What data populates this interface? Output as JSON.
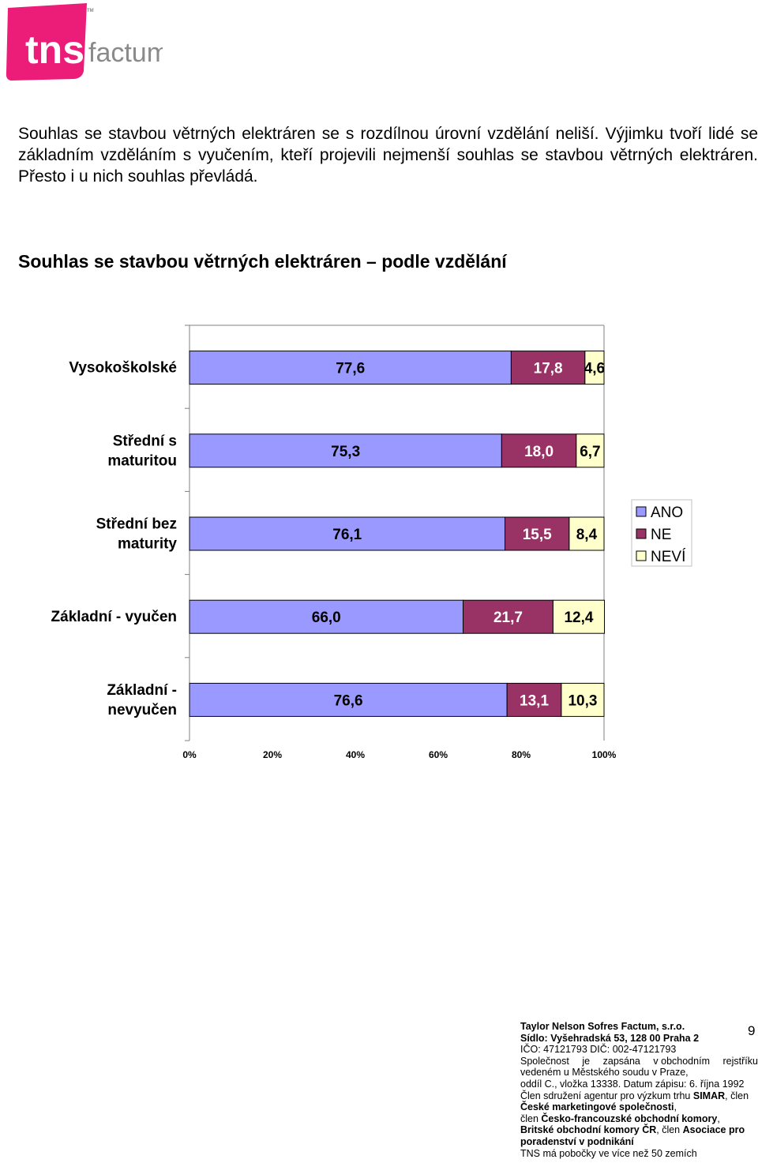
{
  "logo": {
    "text_main": "tns",
    "text_sub": "factum",
    "trademark": "TM",
    "brand_color": "#ec1c79"
  },
  "intro": {
    "text": "Souhlas se stavbou větrných elektráren se s rozdílnou úrovní vzdělání neliší. Výjimku tvoří lidé se základním vzděláním s vyučením, kteří projevili nejmenší souhlas se stavbou větrných elektráren. Přesto i u nich souhlas převládá."
  },
  "chart_data": {
    "type": "bar",
    "orientation": "horizontal",
    "stacked": "percent",
    "title": "Souhlas se stavbou větrných elektráren – podle vzdělání",
    "categories": [
      "Vysokoškolské",
      "Střední s maturitou",
      "Střední bez maturity",
      "Základní - vyučen",
      "Základní - nevyučen"
    ],
    "category_lines": [
      [
        "Vysokoškolské"
      ],
      [
        "Střední s",
        "maturitou"
      ],
      [
        "Střední bez",
        "maturity"
      ],
      [
        "Základní - vyučen"
      ],
      [
        "Základní -",
        "nevyučen"
      ]
    ],
    "series": [
      {
        "name": "ANO",
        "color": "#9999ff",
        "values": [
          77.6,
          75.3,
          76.1,
          66.0,
          76.6
        ],
        "labels": [
          "77,6",
          "75,3",
          "76,1",
          "66,0",
          "76,6"
        ]
      },
      {
        "name": "NE",
        "color": "#993366",
        "label_color": "#ffffff",
        "values": [
          17.8,
          18.0,
          15.5,
          21.7,
          13.1
        ],
        "labels": [
          "17,8",
          "18,0",
          "15,5",
          "21,7",
          "13,1"
        ]
      },
      {
        "name": "NEVÍ",
        "color": "#ffffcc",
        "values": [
          4.6,
          6.7,
          8.4,
          12.4,
          10.3
        ],
        "labels": [
          "4,6",
          "6,7",
          "8,4",
          "12,4",
          "10,3"
        ]
      }
    ],
    "x_ticks": [
      "0%",
      "20%",
      "40%",
      "60%",
      "80%",
      "100%"
    ],
    "xlim": [
      0,
      100
    ],
    "legend": [
      "ANO",
      "NE",
      "NEVÍ"
    ],
    "legend_position": "right"
  },
  "footer": {
    "company": "Taylor Nelson Sofres Factum, s.r.o.",
    "address": "Sídlo: Vyšehradská 53, 128 00  Praha 2",
    "ids": "IČO: 47121793   DIČ: 002-47121793",
    "registry_words": [
      "Společnost",
      "je",
      "zapsána",
      "v obchodním",
      "rejstříku"
    ],
    "registry_2": "vedeném u Městského soudu v Praze,",
    "registry_3": "oddíl C., vložka  13338. Datum zápisu: 6. října 1992",
    "m1a": "Člen sdružení agentur pro výzkum trhu ",
    "m1b": "SIMAR",
    "m1c": ", člen",
    "m2a": "České marketingové společnosti",
    "m2b": ",",
    "m3a": "člen ",
    "m3b": "Česko-francouzské obchodní komory",
    "m3c": ",",
    "m4a": "Britské obchodní komory ČR",
    "m4b": ", člen ",
    "m4c": "Asociace pro",
    "m5a": "poradenství v podnikání",
    "branches": "TNS má pobočky ve více než 50 zemích"
  },
  "page_number": "9"
}
